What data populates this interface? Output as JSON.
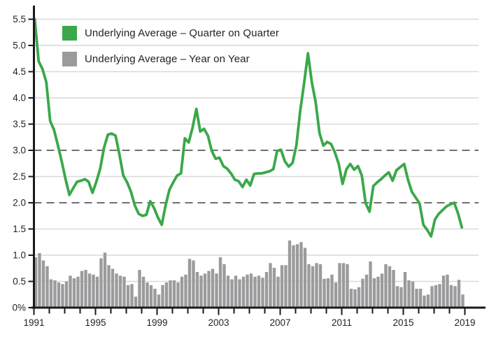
{
  "legend": {
    "items": [
      {
        "label": "Underlying Average – Quarter on Quarter",
        "color": "#3aa84a"
      },
      {
        "label": "Underlying Average – Year on Year",
        "color": "#9b9b9d"
      }
    ]
  },
  "chart_data": {
    "type": "combo",
    "title": "",
    "xlabel": "",
    "ylabel": "",
    "x_start_year": 1991,
    "frequency": "quarterly",
    "ylim": [
      0,
      5.5
    ],
    "grid": "horizontal, every 0.5",
    "legend_position": "top-left inside plot",
    "reference_lines": {
      "values": [
        2.0,
        3.0
      ],
      "style": "dashed",
      "color": "#6f6f6f"
    },
    "y_axis": {
      "tick_values": [
        0,
        0.5,
        1.0,
        1.5,
        2.0,
        2.5,
        3.0,
        3.5,
        4.0,
        4.5,
        5.0,
        5.5
      ],
      "tick_labels": [
        "0%",
        "0.5",
        "1.0",
        "1.5",
        "2.0",
        "2.5",
        "3.0",
        "3.5",
        "4.0",
        "4.5",
        "5.0",
        "5.5"
      ]
    },
    "x_axis": {
      "minor_ticks": "every year 1991-2019",
      "labeled_years": [
        1991,
        1995,
        1999,
        2003,
        2007,
        2011,
        2015,
        2019
      ],
      "tick_labels": [
        "1991",
        "1995",
        "1999",
        "2003",
        "2007",
        "2011",
        "2015",
        "2019"
      ]
    },
    "series": [
      {
        "name": "Underlying Average – Quarter on Quarter",
        "type": "line",
        "color": "#3aa84a",
        "first_quarter": "1991Q1",
        "values": [
          5.5,
          4.7,
          4.55,
          4.3,
          3.56,
          3.39,
          3.1,
          2.79,
          2.45,
          2.15,
          2.28,
          2.4,
          2.42,
          2.45,
          2.4,
          2.19,
          2.4,
          2.65,
          3.05,
          3.3,
          3.32,
          3.28,
          2.92,
          2.52,
          2.39,
          2.21,
          1.95,
          1.79,
          1.75,
          1.77,
          2.03,
          1.9,
          1.72,
          1.58,
          1.95,
          2.25,
          2.39,
          2.52,
          2.56,
          3.23,
          3.15,
          3.43,
          3.79,
          3.36,
          3.41,
          3.28,
          2.99,
          2.84,
          2.86,
          2.7,
          2.65,
          2.56,
          2.44,
          2.41,
          2.3,
          2.44,
          2.33,
          2.55,
          2.56,
          2.56,
          2.58,
          2.6,
          2.64,
          2.99,
          3.01,
          2.79,
          2.69,
          2.76,
          3.1,
          3.76,
          4.28,
          4.85,
          4.3,
          3.92,
          3.33,
          3.09,
          3.16,
          3.12,
          2.96,
          2.74,
          2.36,
          2.64,
          2.74,
          2.63,
          2.7,
          2.52,
          1.99,
          1.83,
          2.32,
          2.39,
          2.45,
          2.52,
          2.58,
          2.42,
          2.62,
          2.68,
          2.74,
          2.44,
          2.21,
          2.1,
          1.99,
          1.58,
          1.48,
          1.36,
          1.68,
          1.79,
          1.86,
          1.93,
          1.97,
          2.0,
          1.8,
          1.53
        ]
      },
      {
        "name": "Underlying Average – Year on Year",
        "type": "bar",
        "color": "#9b9b9d",
        "first_quarter": "1991Q1",
        "values": [
          0.96,
          1.04,
          0.9,
          0.79,
          0.54,
          0.52,
          0.48,
          0.45,
          0.5,
          0.61,
          0.56,
          0.59,
          0.7,
          0.72,
          0.65,
          0.63,
          0.59,
          0.94,
          1.05,
          0.81,
          0.74,
          0.65,
          0.61,
          0.59,
          0.43,
          0.45,
          0.21,
          0.72,
          0.59,
          0.48,
          0.43,
          0.36,
          0.25,
          0.43,
          0.48,
          0.52,
          0.52,
          0.48,
          0.59,
          0.63,
          0.93,
          0.9,
          0.68,
          0.61,
          0.65,
          0.7,
          0.74,
          0.65,
          0.96,
          0.83,
          0.61,
          0.54,
          0.61,
          0.54,
          0.59,
          0.63,
          0.65,
          0.59,
          0.61,
          0.57,
          0.68,
          0.85,
          0.76,
          0.59,
          0.81,
          0.81,
          1.28,
          1.19,
          1.21,
          1.25,
          1.14,
          0.83,
          0.79,
          0.85,
          0.83,
          0.55,
          0.56,
          0.63,
          0.48,
          0.85,
          0.85,
          0.83,
          0.36,
          0.35,
          0.39,
          0.55,
          0.63,
          0.88,
          0.56,
          0.59,
          0.65,
          0.83,
          0.79,
          0.72,
          0.41,
          0.39,
          0.68,
          0.52,
          0.5,
          0.36,
          0.36,
          0.23,
          0.25,
          0.41,
          0.43,
          0.45,
          0.61,
          0.63,
          0.43,
          0.41,
          0.53,
          0.25
        ]
      }
    ],
    "colors": {
      "axis": "#1a1a1a",
      "grid": "#d9d9d9",
      "dashed": "#6f6f6f",
      "text": "#231f20",
      "background": "#ffffff"
    }
  }
}
